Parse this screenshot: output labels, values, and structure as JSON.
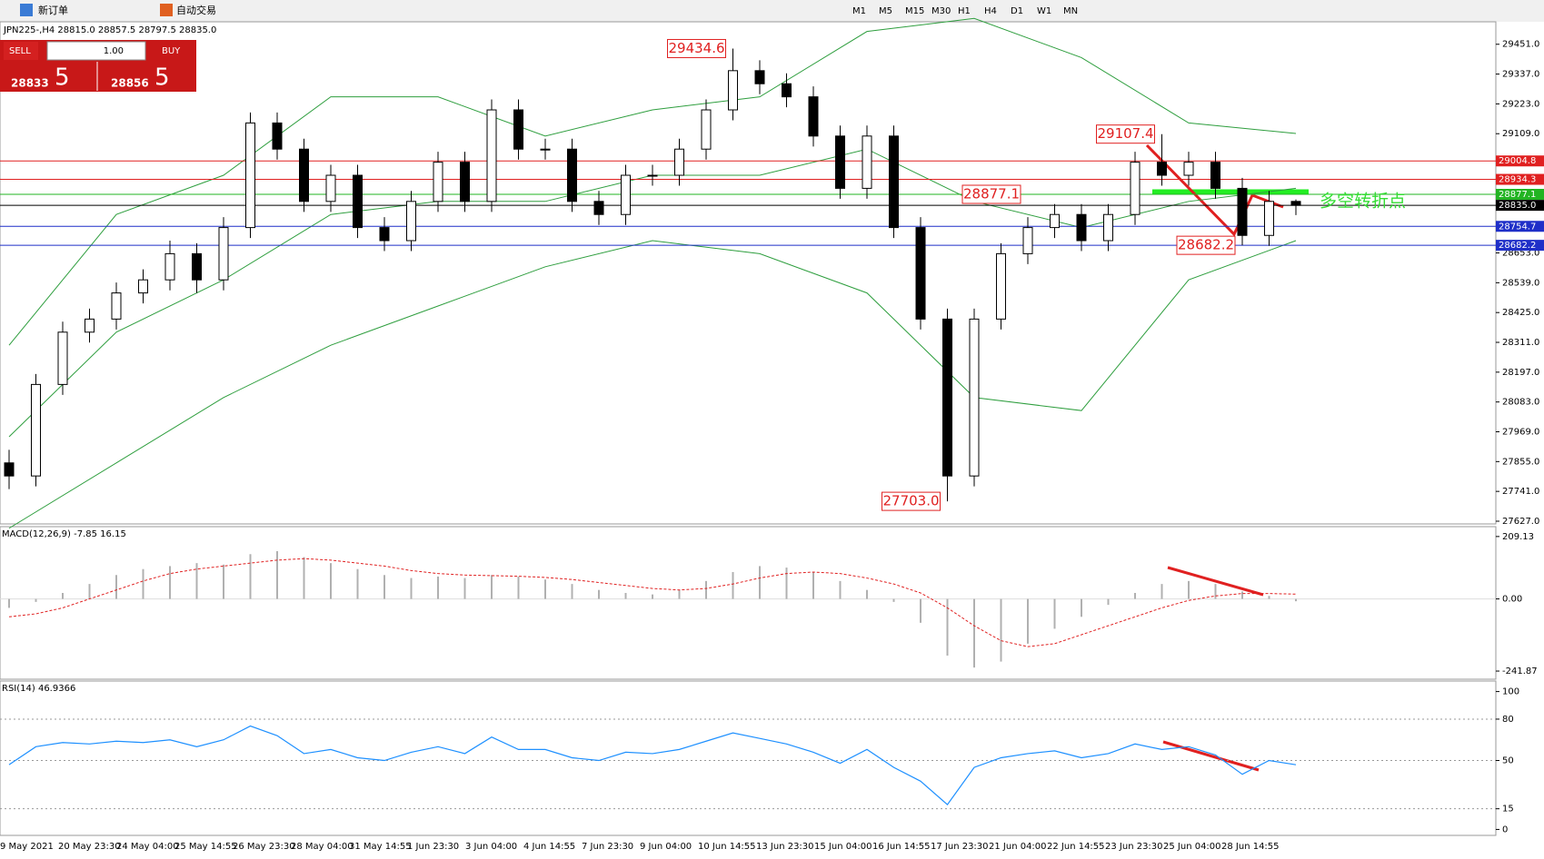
{
  "toolbar": {
    "new_order": "新订单",
    "auto_trading": "自动交易",
    "timeframes": [
      "M1",
      "M5",
      "M15",
      "M30",
      "H1",
      "H4",
      "D1",
      "W1",
      "MN"
    ]
  },
  "trade_panel": {
    "sell": "SELL",
    "lot": "1.00",
    "buy": "BUY",
    "sell_price_main": "28833",
    "sell_price_big": "5",
    "buy_price_main": "28856",
    "buy_price_big": "5"
  },
  "symbol_header": "JPN225-,H4 28815.0 28857.5 28797.5 28835.0",
  "x_labels": [
    "9 May 2021",
    "20 May 23:30",
    "24 May 04:00",
    "25 May 14:55",
    "26 May 23:30",
    "28 May 04:00",
    "31 May 14:55",
    "1 Jun 23:30",
    "3 Jun 04:00",
    "4 Jun 14:55",
    "7 Jun 23:30",
    "9 Jun 04:00",
    "10 Jun 14:55",
    "13 Jun 23:30",
    "15 Jun 04:00",
    "16 Jun 14:55",
    "17 Jun 23:30",
    "21 Jun 04:00",
    "22 Jun 14:55",
    "23 Jun 23:30",
    "25 Jun 04:00",
    "28 Jun 14:55"
  ],
  "chart_data": [
    {
      "type": "candlestick",
      "ylim": [
        27620,
        29530
      ],
      "yticks": [
        {
          "value": 29451,
          "label": "29451.0"
        },
        {
          "value": 29337,
          "label": "29337.0"
        },
        {
          "value": 29223,
          "label": "29223.0"
        },
        {
          "value": 29109,
          "label": "29109.0"
        },
        {
          "value": 28653,
          "label": "28653.0"
        },
        {
          "value": 28539,
          "label": "28539.0"
        },
        {
          "value": 28425,
          "label": "28425.0"
        },
        {
          "value": 28311,
          "label": "28311.0"
        },
        {
          "value": 28197,
          "label": "28197.0"
        },
        {
          "value": 28083,
          "label": "28083.0"
        },
        {
          "value": 27969,
          "label": "27969.0"
        },
        {
          "value": 27855,
          "label": "27855.0"
        },
        {
          "value": 27741,
          "label": "27741.0"
        },
        {
          "value": 27627,
          "label": "27627.0"
        }
      ],
      "candles": [
        [
          27850,
          27900,
          27750,
          27800
        ],
        [
          27800,
          28190,
          27760,
          28150
        ],
        [
          28150,
          28390,
          28110,
          28350
        ],
        [
          28350,
          28440,
          28310,
          28400
        ],
        [
          28400,
          28540,
          28360,
          28500
        ],
        [
          28500,
          28590,
          28460,
          28550
        ],
        [
          28550,
          28700,
          28510,
          28650
        ],
        [
          28650,
          28690,
          28500,
          28550
        ],
        [
          28550,
          28790,
          28510,
          28750
        ],
        [
          28750,
          29190,
          28710,
          29150
        ],
        [
          29150,
          29190,
          29010,
          29050
        ],
        [
          29050,
          29090,
          28810,
          28850
        ],
        [
          28850,
          28990,
          28810,
          28950
        ],
        [
          28950,
          28990,
          28710,
          28750
        ],
        [
          28750,
          28790,
          28660,
          28700
        ],
        [
          28700,
          28890,
          28660,
          28850
        ],
        [
          28850,
          29040,
          28810,
          29000
        ],
        [
          29000,
          29040,
          28810,
          28850
        ],
        [
          28850,
          29240,
          28810,
          29200
        ],
        [
          29200,
          29240,
          29010,
          29050
        ],
        [
          29050,
          29090,
          29010,
          29050
        ],
        [
          29050,
          29090,
          28810,
          28850
        ],
        [
          28850,
          28890,
          28760,
          28800
        ],
        [
          28800,
          28990,
          28760,
          28950
        ],
        [
          28950,
          28990,
          28910,
          28950
        ],
        [
          28950,
          29090,
          28910,
          29050
        ],
        [
          29050,
          29240,
          29010,
          29200
        ],
        [
          29200,
          29434.6,
          29160,
          29350
        ],
        [
          29350,
          29390,
          29260,
          29300
        ],
        [
          29300,
          29340,
          29210,
          29250
        ],
        [
          29250,
          29290,
          29060,
          29100
        ],
        [
          29100,
          29140,
          28860,
          28900
        ],
        [
          28900,
          29140,
          28860,
          29100
        ],
        [
          29100,
          29140,
          28710,
          28750
        ],
        [
          28750,
          28790,
          28360,
          28400
        ],
        [
          28400,
          28440,
          27703,
          27800
        ],
        [
          27800,
          28440,
          27760,
          28400
        ],
        [
          28400,
          28690,
          28360,
          28650
        ],
        [
          28650,
          28790,
          28610,
          28750
        ],
        [
          28750,
          28840,
          28710,
          28800
        ],
        [
          28800,
          28840,
          28660,
          28700
        ],
        [
          28700,
          28840,
          28660,
          28800
        ],
        [
          28800,
          29040,
          28760,
          29000
        ],
        [
          29000,
          29107.4,
          28910,
          28950
        ],
        [
          28950,
          29040,
          28910,
          29000
        ],
        [
          29000,
          29040,
          28860,
          28900
        ],
        [
          28900,
          28940,
          28682.2,
          28720
        ],
        [
          28720,
          28890,
          28680,
          28850
        ],
        [
          28850,
          28857.5,
          28797.5,
          28835
        ]
      ],
      "band_x": [
        0,
        4,
        8,
        12,
        16,
        20,
        24,
        28,
        32,
        36,
        40,
        44,
        48
      ],
      "bands": [
        {
          "color": "#2e9e3e",
          "values": [
            28300,
            28800,
            28950,
            29250,
            29250,
            29100,
            29200,
            29250,
            29500,
            29550,
            29400,
            29150,
            29110
          ]
        },
        {
          "color": "#2e9e3e",
          "values": [
            27950,
            28350,
            28550,
            28800,
            28850,
            28850,
            28950,
            28950,
            29050,
            28850,
            28750,
            28850,
            28900
          ]
        },
        {
          "color": "#2e9e3e",
          "values": [
            27600,
            27850,
            28100,
            28300,
            28450,
            28600,
            28700,
            28650,
            28500,
            28100,
            28050,
            28550,
            28700
          ]
        }
      ],
      "levels": [
        {
          "value": 29004.8,
          "label": "29004.8",
          "color": "#e02020"
        },
        {
          "value": 28934.3,
          "label": "28934.3",
          "color": "#e02020"
        },
        {
          "value": 28877.1,
          "label": "28877.1",
          "color": "#22b422"
        },
        {
          "value": 28835,
          "label": "28835.0",
          "color": "#000000"
        },
        {
          "value": 28754.7,
          "label": "28754.7",
          "color": "#1f2fc8"
        },
        {
          "value": 28682.2,
          "label": "28682.2",
          "color": "#1f2fc8"
        }
      ],
      "annotations": [
        {
          "text": "29434.6",
          "value": 29434.6,
          "at": 27
        },
        {
          "text": "29107.4",
          "value": 29107.4,
          "at": 43
        },
        {
          "text": "28877.1",
          "value": 28877.1,
          "at": 38
        },
        {
          "text": "28682.2",
          "value": 28682.2,
          "at": 46
        },
        {
          "text": "27703.0",
          "value": 27703,
          "at": 35
        }
      ],
      "note": "多空转折点"
    },
    {
      "type": "macd",
      "title": "MACD(12,26,9) -7.85 16.15",
      "ylim": [
        -260,
        230
      ],
      "yticks": [
        209.13,
        {
          "value": 0,
          "label": "0.00"
        },
        -241.87
      ],
      "histogram": [
        -30,
        -10,
        20,
        50,
        80,
        100,
        110,
        120,
        115,
        150,
        160,
        140,
        120,
        100,
        80,
        70,
        75,
        70,
        80,
        75,
        65,
        50,
        30,
        20,
        15,
        30,
        60,
        90,
        110,
        105,
        90,
        60,
        30,
        -10,
        -80,
        -190,
        -230,
        -210,
        -150,
        -100,
        -60,
        -20,
        20,
        50,
        60,
        50,
        25,
        10,
        -7.85
      ],
      "signal": [
        -60,
        -50,
        -30,
        0,
        30,
        60,
        85,
        100,
        110,
        120,
        130,
        135,
        130,
        120,
        110,
        95,
        85,
        80,
        78,
        76,
        72,
        65,
        55,
        45,
        35,
        30,
        35,
        50,
        70,
        85,
        90,
        85,
        70,
        50,
        20,
        -30,
        -90,
        -140,
        -160,
        -150,
        -120,
        -90,
        -60,
        -30,
        -5,
        10,
        18,
        18,
        16.15
      ],
      "hist_color": "#b0b0b0",
      "signal_color": "#e02020"
    },
    {
      "type": "rsi",
      "title": "RSI(14) 46.9366",
      "ylim": [
        -3,
        105
      ],
      "yticks": [
        100,
        80,
        50,
        15,
        0
      ],
      "levels": [
        80,
        50,
        15
      ],
      "values": [
        47,
        60,
        63,
        62,
        64,
        63,
        65,
        60,
        65,
        75,
        68,
        55,
        58,
        52,
        50,
        56,
        60,
        55,
        67,
        58,
        58,
        52,
        50,
        56,
        55,
        58,
        64,
        70,
        66,
        62,
        56,
        48,
        58,
        45,
        35,
        18,
        45,
        52,
        55,
        57,
        52,
        55,
        62,
        58,
        60,
        54,
        40,
        50,
        46.9366
      ],
      "color": "#1e90ff"
    }
  ]
}
